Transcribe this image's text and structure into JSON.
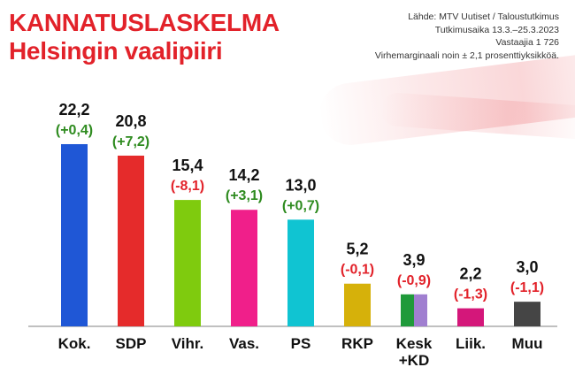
{
  "header": {
    "title_line1": "KANNATUSLASKELMA",
    "title_line2": "Helsingin vaalipiiri"
  },
  "source_info": [
    "Lähde: MTV Uutiset / Taloustutkimus",
    "Tutkimusaika 13.3.–25.3.2023",
    "Vastaajia 1 726",
    "Virhemarginaali noin ± 2,1 prosenttiyksikköä."
  ],
  "colors": {
    "accent": "#e2222a",
    "positive_change": "#2e8b1f",
    "negative_change": "#e2222a"
  },
  "chart_data": {
    "type": "bar",
    "title": "",
    "xlabel": "",
    "ylabel": "",
    "ylim": [
      0,
      25
    ],
    "categories": [
      "Kok.",
      "SDP",
      "Vihr.",
      "Vas.",
      "PS",
      "RKP",
      "Kesk\n+KD",
      "Liik.",
      "Muu"
    ],
    "values": [
      22.2,
      20.8,
      15.4,
      14.2,
      13.0,
      5.2,
      3.9,
      2.2,
      3.0
    ],
    "value_labels": [
      "22,2",
      "20,8",
      "15,4",
      "14,2",
      "13,0",
      "5,2",
      "3,9",
      "2,2",
      "3,0"
    ],
    "change_labels": [
      "(+0,4)",
      "(+7,2)",
      "(-8,1)",
      "(+3,1)",
      "(+0,7)",
      "(-0,1)",
      "(-0,9)",
      "(-1,3)",
      "(-1,1)"
    ],
    "changes": [
      0.4,
      7.2,
      -8.1,
      3.1,
      0.7,
      -0.1,
      -0.9,
      -1.3,
      -1.1
    ],
    "bar_colors": [
      [
        "#1f57d6"
      ],
      [
        "#e52b2b"
      ],
      [
        "#7fcb0e"
      ],
      [
        "#f01f8a"
      ],
      [
        "#10c4d2"
      ],
      [
        "#d6b10a"
      ],
      [
        "#1f9a3a",
        "#a07fd0"
      ],
      [
        "#d4177a"
      ],
      [
        "#454545"
      ]
    ],
    "grid": false,
    "legend": "none"
  }
}
